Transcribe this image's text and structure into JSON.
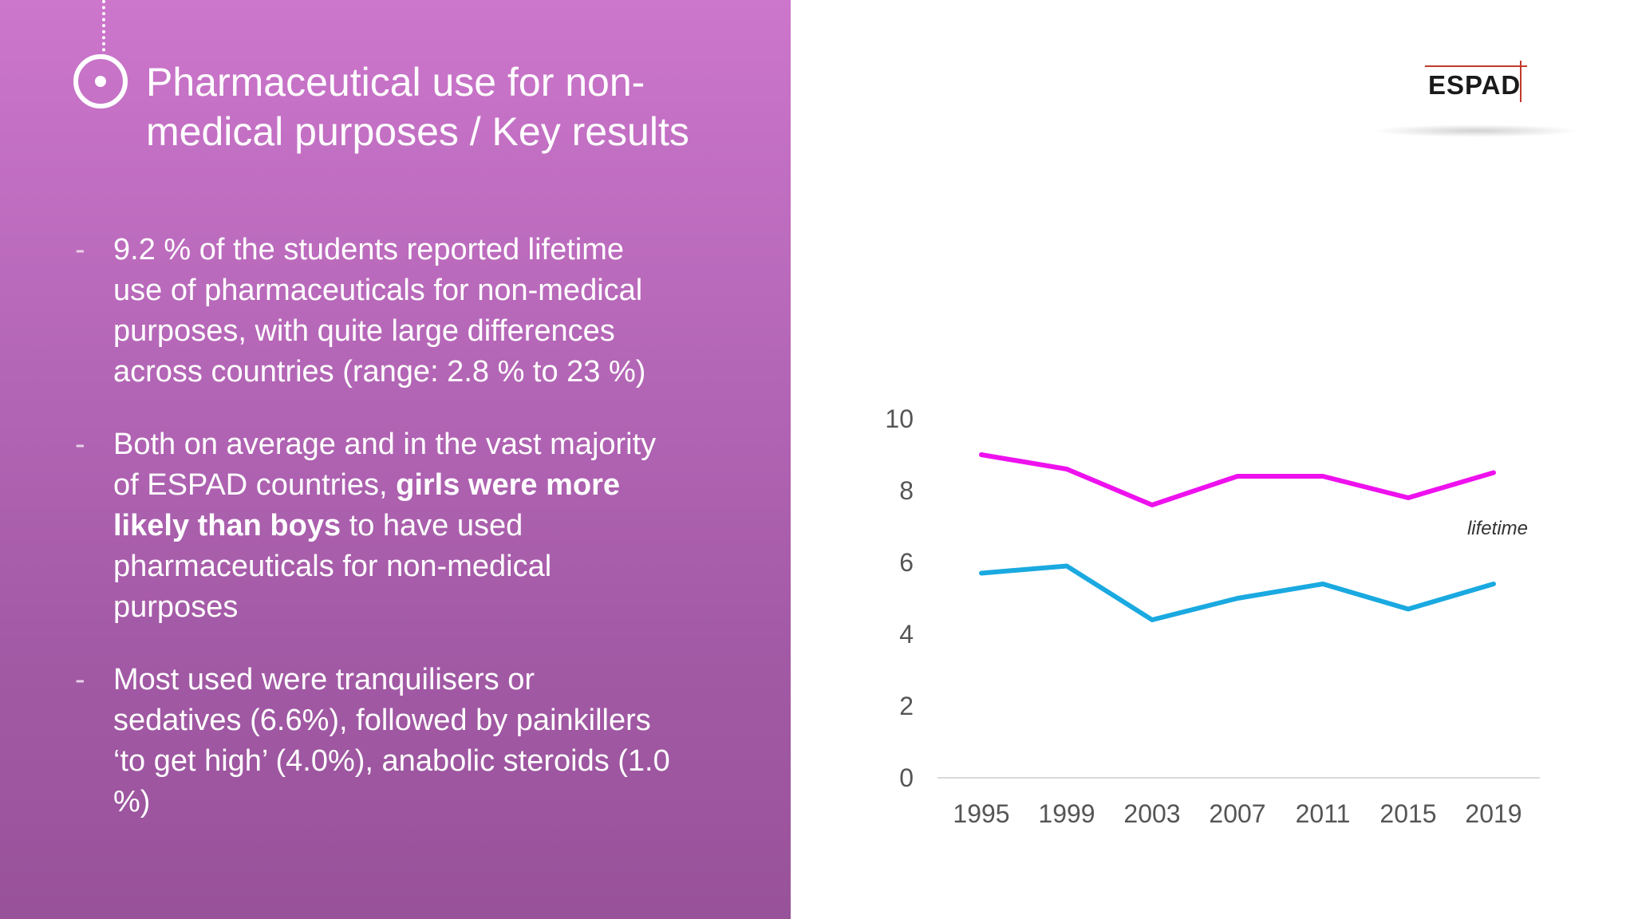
{
  "title": "Pharmaceutical use for non-medical purposes / Key results",
  "title_lines": [
    "Pharmaceutical use for non-",
    "medical purposes / Key results"
  ],
  "bullets": [
    {
      "lines": [
        "9.2 % of the students reported lifetime",
        "use of pharmaceuticals for non-medical",
        "purposes, with quite large differences",
        "across countries (range: 2.8 % to 23 %)"
      ]
    },
    {
      "line1": "Both on average and in the vast majority",
      "line2_pre": "of ESPAD countries, ",
      "line2_bold": "girls were more",
      "line3_bold": "likely than boys",
      "line3_post": " to have used",
      "line4": "pharmaceuticals for non-medical",
      "line5": "purposes"
    },
    {
      "lines": [
        "Most used were tranquilisers or",
        "sedatives (6.6%), followed by painkillers",
        "‘to get high’ (4.0%), anabolic steroids (1.0",
        "%)"
      ]
    }
  ],
  "logo_text": "ESPAD",
  "colors": {
    "panel_top": "#cc76cc",
    "panel_bottom": "#985299",
    "series_magenta": "#ee11ee",
    "series_blue": "#1aa9e0",
    "axis": "#d9d9d9"
  },
  "chart_data": {
    "type": "line",
    "categories": [
      "1995",
      "1999",
      "2003",
      "2007",
      "2011",
      "2015",
      "2019"
    ],
    "yticks": [
      "0",
      "2",
      "4",
      "6",
      "8",
      "10"
    ],
    "ylim": [
      0,
      10
    ],
    "grid": false,
    "series": [
      {
        "values": [
          9.0,
          8.6,
          7.6,
          8.4,
          8.4,
          7.8,
          8.5
        ],
        "color": "#ee11ee"
      },
      {
        "values": [
          5.7,
          5.9,
          4.4,
          5.0,
          5.4,
          4.7,
          5.4
        ],
        "color": "#1aa9e0"
      }
    ],
    "annotations": [
      {
        "text": "lifetime"
      }
    ]
  }
}
